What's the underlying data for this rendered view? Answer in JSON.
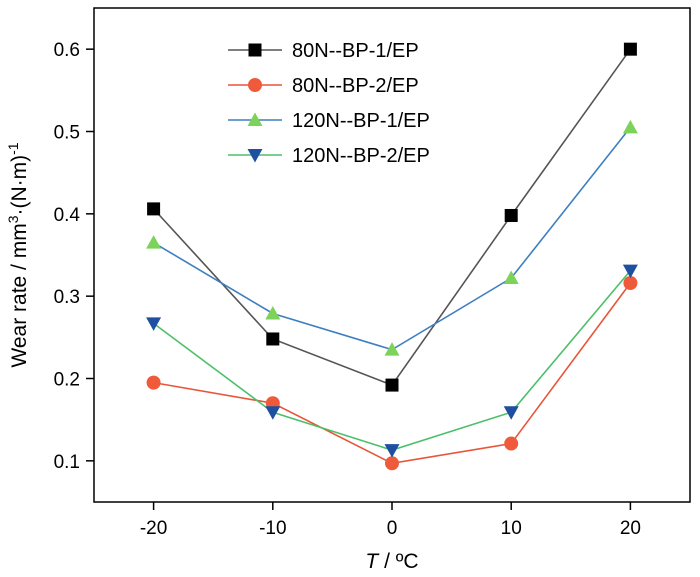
{
  "chart_data": {
    "type": "line",
    "x": [
      -20,
      -10,
      0,
      10,
      20
    ],
    "xlim": [
      -25,
      25
    ],
    "ylim": [
      0.05,
      0.65
    ],
    "xticks": [
      "-20",
      "-10",
      "0",
      "10",
      "20"
    ],
    "yticks": [
      "0.1",
      "0.2",
      "0.3",
      "0.4",
      "0.5",
      "0.6"
    ],
    "xlabel": {
      "italic": "T",
      "rest": " / ºC"
    },
    "ylabel": {
      "base": "Wear rate / mm",
      "sup1": "3",
      "mid": "·(N·m)",
      "sup2": "-1"
    },
    "legend_position": "top-center",
    "grid": false,
    "series": [
      {
        "name": "80N--BP-1/EP",
        "values": [
          0.406,
          0.248,
          0.192,
          0.398,
          0.6
        ],
        "line_color": "#555555",
        "marker": "square",
        "marker_color": "#000000"
      },
      {
        "name": "80N--BP-2/EP",
        "values": [
          0.195,
          0.17,
          0.097,
          0.121,
          0.316
        ],
        "line_color": "#e8553a",
        "marker": "circle",
        "marker_color": "#ef5a3a"
      },
      {
        "name": "120N--BP-1/EP",
        "values": [
          0.365,
          0.279,
          0.235,
          0.322,
          0.505
        ],
        "line_color": "#3d7fc1",
        "marker": "triangle-up",
        "marker_color": "#7dd35a"
      },
      {
        "name": "120N--BP-2/EP",
        "values": [
          0.267,
          0.159,
          0.113,
          0.159,
          0.331
        ],
        "line_color": "#4cbf6a",
        "marker": "triangle-down",
        "marker_color": "#1f4fa0"
      }
    ]
  }
}
